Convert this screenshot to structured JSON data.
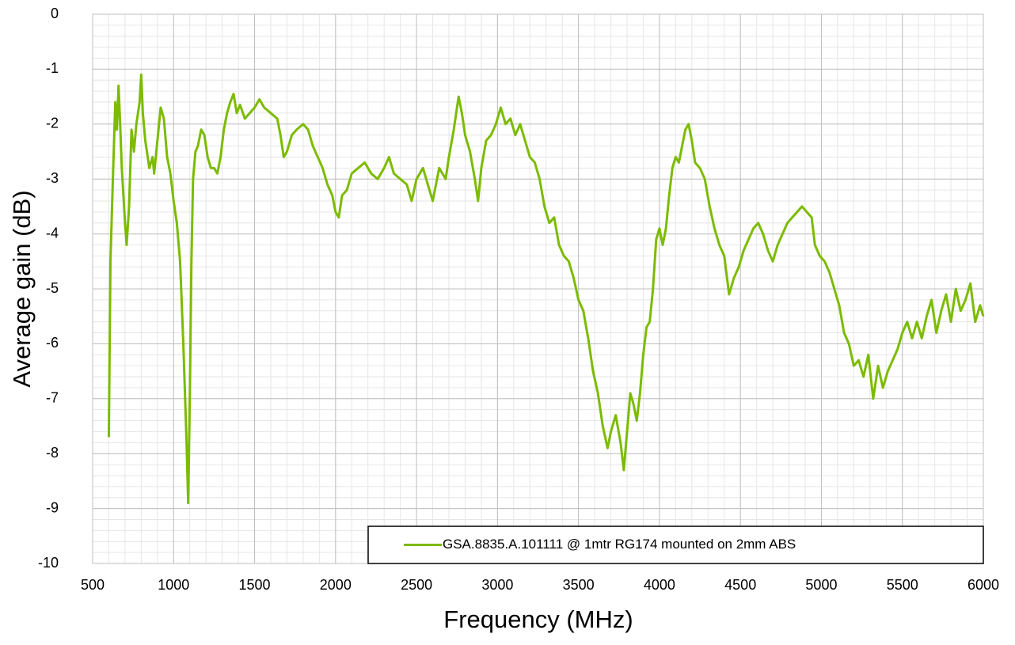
{
  "chart_data": {
    "type": "line",
    "xlabel": "Frequency (MHz)",
    "ylabel": "Average gain (dB)",
    "xlim": [
      500,
      6000
    ],
    "ylim": [
      -10,
      0
    ],
    "xticks": [
      500,
      1000,
      1500,
      2000,
      2500,
      3000,
      3500,
      4000,
      4500,
      5000,
      5500,
      6000
    ],
    "yticks": [
      0,
      -1,
      -2,
      -3,
      -4,
      -5,
      -6,
      -7,
      -8,
      -9,
      -10
    ],
    "grid": true,
    "minor_grid": {
      "x": 100,
      "y": 0.2
    },
    "legend": "lower right",
    "x": [
      600,
      610,
      625,
      640,
      650,
      660,
      670,
      680,
      700,
      710,
      725,
      740,
      755,
      770,
      790,
      800,
      810,
      825,
      850,
      870,
      880,
      900,
      920,
      940,
      960,
      980,
      1000,
      1020,
      1040,
      1060,
      1080,
      1090,
      1100,
      1110,
      1120,
      1135,
      1150,
      1170,
      1190,
      1210,
      1230,
      1250,
      1270,
      1290,
      1310,
      1330,
      1350,
      1370,
      1390,
      1410,
      1440,
      1470,
      1500,
      1530,
      1560,
      1600,
      1640,
      1660,
      1680,
      1700,
      1730,
      1760,
      1800,
      1830,
      1860,
      1890,
      1920,
      1950,
      1980,
      2000,
      2020,
      2040,
      2070,
      2100,
      2140,
      2180,
      2220,
      2260,
      2300,
      2330,
      2360,
      2400,
      2440,
      2470,
      2500,
      2540,
      2570,
      2600,
      2640,
      2680,
      2700,
      2730,
      2760,
      2780,
      2800,
      2830,
      2860,
      2880,
      2900,
      2930,
      2960,
      2990,
      3020,
      3050,
      3080,
      3110,
      3140,
      3170,
      3200,
      3230,
      3260,
      3290,
      3320,
      3350,
      3380,
      3410,
      3440,
      3470,
      3500,
      3530,
      3560,
      3590,
      3620,
      3650,
      3680,
      3700,
      3730,
      3760,
      3780,
      3800,
      3820,
      3840,
      3860,
      3880,
      3900,
      3920,
      3940,
      3960,
      3980,
      4000,
      4020,
      4040,
      4060,
      4080,
      4100,
      4120,
      4140,
      4160,
      4180,
      4200,
      4220,
      4250,
      4280,
      4310,
      4340,
      4370,
      4400,
      4430,
      4460,
      4490,
      4520,
      4550,
      4580,
      4610,
      4640,
      4670,
      4700,
      4730,
      4760,
      4790,
      4820,
      4850,
      4880,
      4910,
      4940,
      4960,
      4990,
      5020,
      5050,
      5080,
      5110,
      5140,
      5170,
      5200,
      5230,
      5260,
      5290,
      5320,
      5350,
      5380,
      5410,
      5440,
      5470,
      5500,
      5530,
      5560,
      5590,
      5620,
      5650,
      5680,
      5710,
      5740,
      5770,
      5800,
      5830,
      5860,
      5890,
      5920,
      5950,
      5980,
      6000
    ],
    "series": [
      {
        "name": "GSA.8835.A.101111 @ 1mtr RG174 mounted on 2mm ABS",
        "color": "#7cbb00",
        "values": [
          -7.7,
          -4.5,
          -3.0,
          -1.6,
          -2.1,
          -1.3,
          -2.0,
          -2.8,
          -3.8,
          -4.2,
          -3.5,
          -2.1,
          -2.5,
          -2.0,
          -1.6,
          -1.1,
          -1.8,
          -2.3,
          -2.8,
          -2.6,
          -2.9,
          -2.3,
          -1.7,
          -1.9,
          -2.6,
          -2.9,
          -3.4,
          -3.8,
          -4.5,
          -6.0,
          -7.8,
          -8.9,
          -7.0,
          -4.5,
          -3.0,
          -2.5,
          -2.4,
          -2.1,
          -2.2,
          -2.6,
          -2.8,
          -2.8,
          -2.9,
          -2.6,
          -2.1,
          -1.8,
          -1.6,
          -1.45,
          -1.8,
          -1.65,
          -1.9,
          -1.8,
          -1.7,
          -1.55,
          -1.7,
          -1.8,
          -1.9,
          -2.2,
          -2.6,
          -2.5,
          -2.2,
          -2.1,
          -2.0,
          -2.1,
          -2.4,
          -2.6,
          -2.8,
          -3.1,
          -3.3,
          -3.6,
          -3.7,
          -3.3,
          -3.2,
          -2.9,
          -2.8,
          -2.7,
          -2.9,
          -3.0,
          -2.8,
          -2.6,
          -2.9,
          -3.0,
          -3.1,
          -3.4,
          -3.0,
          -2.8,
          -3.1,
          -3.4,
          -2.8,
          -3.0,
          -2.6,
          -2.1,
          -1.5,
          -1.8,
          -2.2,
          -2.5,
          -3.0,
          -3.4,
          -2.8,
          -2.3,
          -2.2,
          -2.0,
          -1.7,
          -2.0,
          -1.9,
          -2.2,
          -2.0,
          -2.3,
          -2.6,
          -2.7,
          -3.0,
          -3.5,
          -3.8,
          -3.7,
          -4.2,
          -4.4,
          -4.5,
          -4.8,
          -5.2,
          -5.4,
          -5.9,
          -6.5,
          -6.9,
          -7.5,
          -7.9,
          -7.6,
          -7.3,
          -7.8,
          -8.3,
          -7.6,
          -6.9,
          -7.1,
          -7.4,
          -6.9,
          -6.2,
          -5.7,
          -5.6,
          -5.0,
          -4.1,
          -3.9,
          -4.2,
          -3.9,
          -3.3,
          -2.8,
          -2.6,
          -2.7,
          -2.4,
          -2.1,
          -2.0,
          -2.3,
          -2.7,
          -2.8,
          -3.0,
          -3.5,
          -3.9,
          -4.2,
          -4.4,
          -5.1,
          -4.8,
          -4.6,
          -4.3,
          -4.1,
          -3.9,
          -3.8,
          -4.0,
          -4.3,
          -4.5,
          -4.2,
          -4.0,
          -3.8,
          -3.7,
          -3.6,
          -3.5,
          -3.6,
          -3.7,
          -4.2,
          -4.4,
          -4.5,
          -4.7,
          -5.0,
          -5.3,
          -5.8,
          -6.0,
          -6.4,
          -6.3,
          -6.6,
          -6.2,
          -7.0,
          -6.4,
          -6.8,
          -6.5,
          -6.3,
          -6.1,
          -5.8,
          -5.6,
          -5.9,
          -5.6,
          -5.9,
          -5.5,
          -5.2,
          -5.8,
          -5.4,
          -5.1,
          -5.6,
          -5.0,
          -5.4,
          -5.2,
          -4.9,
          -5.6,
          -5.3,
          -5.5
        ]
      }
    ]
  }
}
